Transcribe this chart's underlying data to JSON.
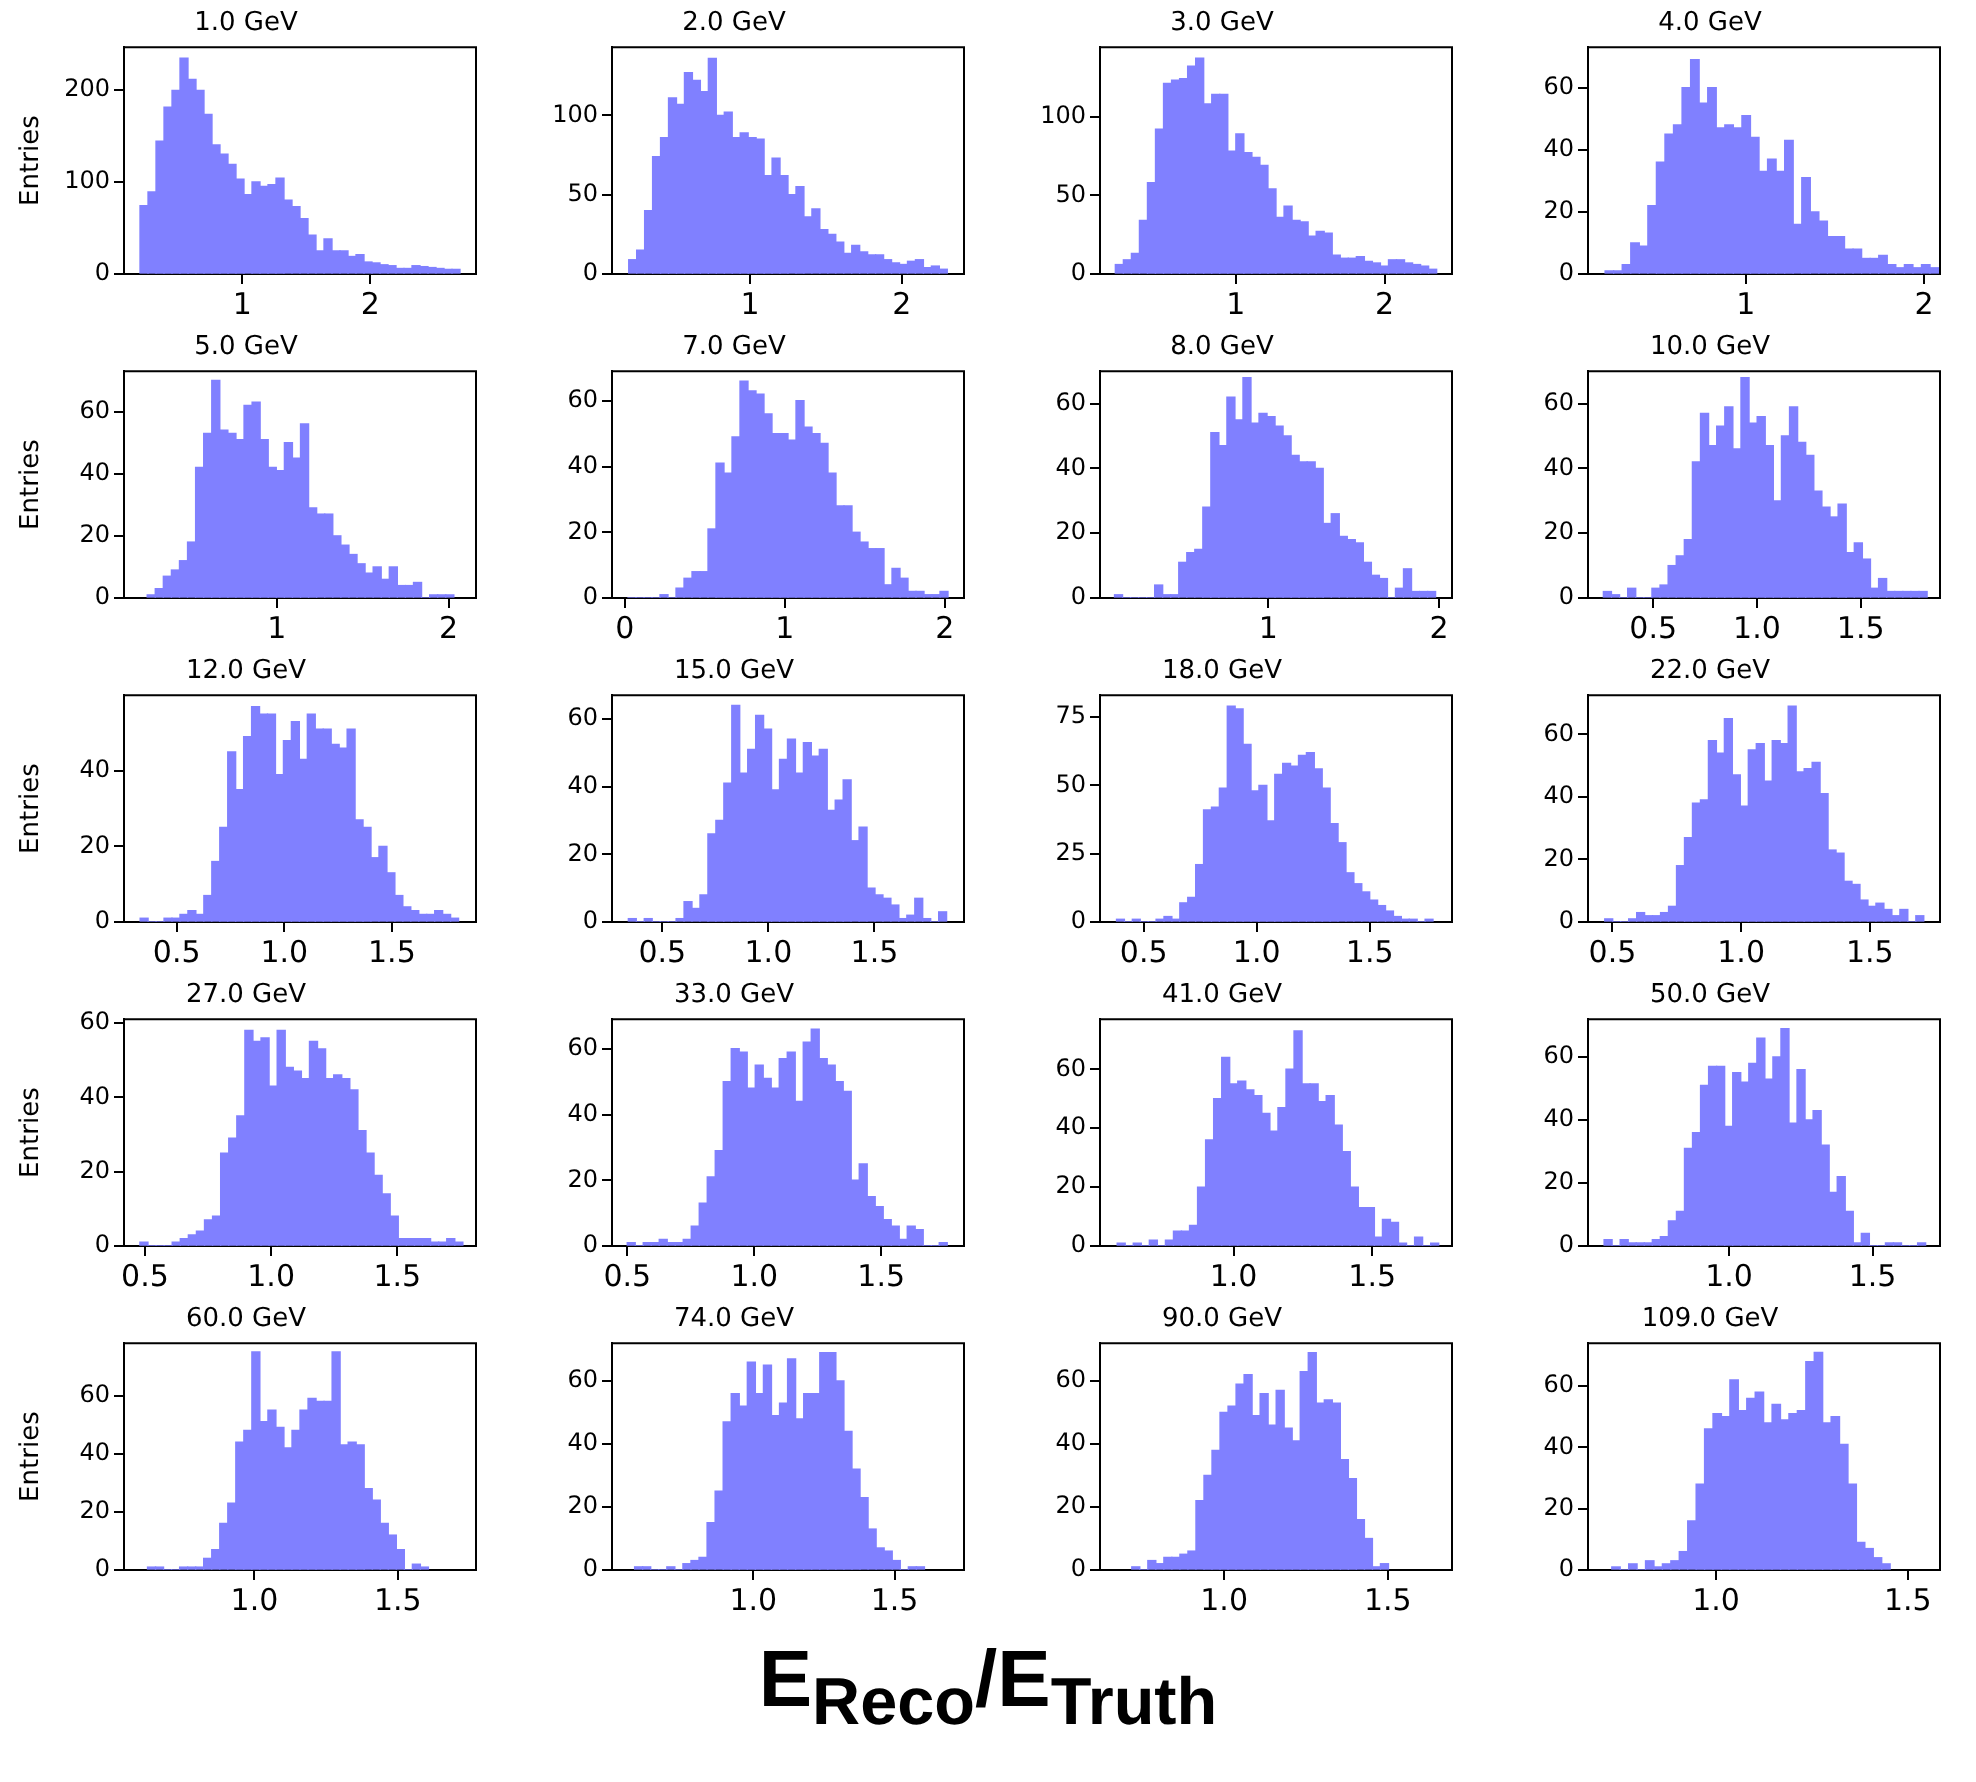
{
  "chart_data": [
    {
      "type": "histogram",
      "title": "1.0 GeV",
      "ylabel": "Entries",
      "color": "#8080ff",
      "xlim": [
        0.075,
        2.825
      ],
      "ylim": [
        0,
        246
      ],
      "xticks": [
        1,
        2
      ],
      "yticks": [
        0,
        100,
        200
      ],
      "bins": [
        0.2,
        0.2625,
        0.325,
        0.3875,
        0.45,
        0.5125,
        0.575,
        0.6375,
        0.7,
        0.7625,
        0.825,
        0.8875,
        0.95,
        1.0125,
        1.075,
        1.1375,
        1.2,
        1.2625,
        1.325,
        1.3875,
        1.45,
        1.5125,
        1.575,
        1.6375,
        1.7,
        1.7625,
        1.825,
        1.8875,
        1.95,
        2.0125,
        2.075,
        2.1375,
        2.2,
        2.2625,
        2.325,
        2.3875,
        2.45,
        2.5125,
        2.575,
        2.6375,
        2.7
      ],
      "values": [
        74,
        89,
        144,
        181,
        199,
        234,
        211,
        199,
        173,
        140,
        130,
        119,
        103,
        86,
        100,
        95,
        97,
        104,
        80,
        73,
        60,
        42,
        25,
        38,
        25,
        25,
        19,
        21,
        13,
        12,
        10,
        9,
        6,
        6,
        9,
        8,
        7,
        6,
        5,
        5
      ]
    },
    {
      "type": "histogram",
      "title": "2.0 GeV",
      "color": "#8080ff",
      "xlim": [
        0.09,
        2.41
      ],
      "ylim": [
        0,
        143
      ],
      "xticks": [
        1,
        2
      ],
      "yticks": [
        0,
        50,
        100
      ],
      "bins": [
        0.2,
        0.2525,
        0.305,
        0.3575,
        0.41,
        0.4625,
        0.515,
        0.5675,
        0.62,
        0.6725,
        0.725,
        0.7775,
        0.83,
        0.8825,
        0.935,
        0.9875,
        1.04,
        1.0925,
        1.145,
        1.1975,
        1.25,
        1.3025,
        1.355,
        1.4075,
        1.46,
        1.5125,
        1.565,
        1.6175,
        1.67,
        1.7225,
        1.775,
        1.8275,
        1.88,
        1.9325,
        1.985,
        2.0375,
        2.09,
        2.1425,
        2.195,
        2.2475,
        2.3
      ],
      "values": [
        9,
        15,
        40,
        74,
        86,
        111,
        107,
        127,
        122,
        115,
        136,
        100,
        102,
        86,
        89,
        86,
        85,
        62,
        73,
        62,
        50,
        55,
        36,
        41,
        28,
        25,
        20,
        13,
        18,
        14,
        12,
        12,
        9,
        7,
        6,
        8,
        9,
        4,
        5,
        3
      ]
    },
    {
      "type": "histogram",
      "title": "3.0 GeV",
      "color": "#8080ff",
      "xlim": [
        0.087,
        2.453
      ],
      "ylim": [
        0,
        144
      ],
      "xticks": [
        1,
        2
      ],
      "yticks": [
        0,
        50,
        100
      ],
      "bins": [
        0.19,
        0.244,
        0.298,
        0.352,
        0.406,
        0.46,
        0.514,
        0.568,
        0.622,
        0.676,
        0.73,
        0.784,
        0.838,
        0.892,
        0.946,
        1.0,
        1.054,
        1.108,
        1.162,
        1.216,
        1.27,
        1.324,
        1.378,
        1.432,
        1.486,
        1.54,
        1.594,
        1.648,
        1.702,
        1.756,
        1.81,
        1.864,
        1.918,
        1.972,
        2.026,
        2.08,
        2.134,
        2.188,
        2.242,
        2.296,
        2.35
      ],
      "values": [
        6,
        9,
        13,
        34,
        58,
        92,
        121,
        123,
        124,
        132,
        137,
        108,
        114,
        114,
        78,
        89,
        77,
        74,
        69,
        54,
        36,
        43,
        34,
        33,
        24,
        27,
        26,
        12,
        10,
        10,
        11,
        8,
        7,
        5,
        9,
        9,
        7,
        6,
        5,
        3
      ]
    },
    {
      "type": "histogram",
      "title": "4.0 GeV",
      "color": "#8080ff",
      "xlim": [
        0.114,
        2.09
      ],
      "ylim": [
        0,
        73
      ],
      "xticks": [
        1,
        2
      ],
      "yticks": [
        0,
        20,
        40,
        60
      ],
      "bins": [
        0.21,
        0.258,
        0.306,
        0.354,
        0.402,
        0.45,
        0.498,
        0.546,
        0.594,
        0.642,
        0.69,
        0.738,
        0.786,
        0.834,
        0.882,
        0.93,
        0.978,
        1.026,
        1.074,
        1.122,
        1.17,
        1.218,
        1.266,
        1.314,
        1.362,
        1.41,
        1.458,
        1.506,
        1.554,
        1.602,
        1.65,
        1.698,
        1.746,
        1.794,
        1.842,
        1.89,
        1.938,
        1.986,
        2.034,
        2.082
      ],
      "values": [
        1,
        1,
        3,
        10,
        9,
        22,
        36,
        45,
        48,
        60,
        69,
        55,
        60,
        47,
        48,
        47,
        51,
        44,
        33,
        37,
        33,
        43,
        16,
        31,
        20,
        17,
        12,
        12,
        8,
        8,
        5,
        5,
        6,
        3,
        2,
        3,
        2,
        3,
        2
      ]
    },
    {
      "type": "histogram",
      "title": "5.0 GeV",
      "ylabel": "Entries",
      "color": "#8080ff",
      "xlim": [
        0.11,
        2.16
      ],
      "ylim": [
        0,
        73
      ],
      "xticks": [
        1,
        2
      ],
      "yticks": [
        0,
        20,
        40,
        60
      ],
      "bins": [
        0.245,
        0.292,
        0.339,
        0.386,
        0.433,
        0.48,
        0.527,
        0.574,
        0.621,
        0.668,
        0.715,
        0.762,
        0.809,
        0.856,
        0.903,
        0.95,
        0.997,
        1.044,
        1.091,
        1.138,
        1.185,
        1.232,
        1.279,
        1.326,
        1.373,
        1.42,
        1.467,
        1.514,
        1.561,
        1.608,
        1.655,
        1.702,
        1.749,
        1.796,
        1.843,
        1.89,
        1.937,
        1.984,
        2.031
      ],
      "values": [
        1,
        3,
        7,
        9,
        12,
        18,
        42,
        53,
        70,
        54,
        53,
        51,
        62,
        63,
        51,
        42,
        41,
        50,
        45,
        56,
        29,
        27,
        27,
        20,
        17,
        14,
        11,
        8,
        10,
        6,
        10,
        4,
        4,
        5,
        0,
        1,
        1,
        1
      ]
    },
    {
      "type": "histogram",
      "title": "7.0 GeV",
      "color": "#8080ff",
      "xlim": [
        -0.08,
        2.12
      ],
      "ylim": [
        0,
        69
      ],
      "xticks": [
        0,
        1,
        2
      ],
      "yticks": [
        0,
        20,
        40,
        60
      ],
      "bins": [
        0.02,
        0.07,
        0.12,
        0.17,
        0.22,
        0.27,
        0.32,
        0.37,
        0.42,
        0.47,
        0.52,
        0.57,
        0.62,
        0.67,
        0.72,
        0.77,
        0.82,
        0.87,
        0.92,
        0.97,
        1.02,
        1.07,
        1.12,
        1.17,
        1.22,
        1.27,
        1.32,
        1.37,
        1.42,
        1.47,
        1.52,
        1.57,
        1.62,
        1.67,
        1.72,
        1.77,
        1.82,
        1.87,
        1.92,
        1.97,
        2.02
      ],
      "values": [
        0,
        0,
        0,
        0,
        1,
        0,
        3,
        6,
        8,
        8,
        21,
        41,
        38,
        49,
        66,
        63,
        62,
        56,
        50,
        50,
        48,
        60,
        52,
        50,
        47,
        38,
        28,
        28,
        20,
        17,
        15,
        15,
        4,
        9,
        6,
        2,
        2,
        1,
        1,
        2
      ]
    },
    {
      "type": "histogram",
      "title": "8.0 GeV",
      "color": "#8080ff",
      "xlim": [
        0.015,
        2.076
      ],
      "ylim": [
        0,
        70
      ],
      "xticks": [
        1,
        2
      ],
      "yticks": [
        0,
        20,
        40,
        60
      ],
      "bins": [
        0.1,
        0.147,
        0.194,
        0.241,
        0.288,
        0.335,
        0.382,
        0.429,
        0.476,
        0.523,
        0.57,
        0.617,
        0.664,
        0.711,
        0.758,
        0.805,
        0.852,
        0.899,
        0.946,
        0.993,
        1.04,
        1.087,
        1.134,
        1.181,
        1.228,
        1.275,
        1.322,
        1.369,
        1.416,
        1.463,
        1.51,
        1.557,
        1.604,
        1.651,
        1.698,
        1.745,
        1.792,
        1.839,
        1.886,
        1.933,
        1.98
      ],
      "values": [
        1,
        0,
        0,
        0,
        0,
        4,
        1,
        1,
        11,
        14,
        15,
        28,
        51,
        47,
        62,
        55,
        68,
        54,
        57,
        56,
        53,
        50,
        44,
        42,
        42,
        40,
        23,
        26,
        19,
        18,
        17,
        11,
        7,
        6,
        0,
        3,
        9,
        2,
        2,
        2
      ]
    },
    {
      "type": "histogram",
      "title": "10.0 GeV",
      "color": "#8080ff",
      "xlim": [
        0.186,
        1.882
      ],
      "ylim": [
        0,
        70
      ],
      "xticks": [
        {
          "value": 0.5,
          "label": "0.5"
        },
        {
          "value": 1,
          "label": "1.0"
        },
        {
          "value": 1.5,
          "label": "1.5"
        }
      ],
      "yticks": [
        0,
        20,
        40,
        60
      ],
      "bins": [
        0.26,
        0.299,
        0.338,
        0.377,
        0.416,
        0.455,
        0.494,
        0.533,
        0.572,
        0.611,
        0.65,
        0.689,
        0.728,
        0.767,
        0.806,
        0.845,
        0.884,
        0.923,
        0.962,
        1.001,
        1.04,
        1.079,
        1.118,
        1.157,
        1.196,
        1.235,
        1.274,
        1.313,
        1.352,
        1.391,
        1.43,
        1.469,
        1.508,
        1.547,
        1.586,
        1.625,
        1.664,
        1.703,
        1.742,
        1.781,
        1.82
      ],
      "values": [
        2,
        1,
        0,
        3,
        0,
        0,
        3,
        4,
        10,
        13,
        18,
        42,
        57,
        47,
        53,
        59,
        46,
        68,
        54,
        56,
        47,
        30,
        50,
        59,
        48,
        44,
        33,
        28,
        25,
        29,
        14,
        17,
        12,
        3,
        6,
        2,
        2,
        2,
        2,
        2
      ]
    },
    {
      "type": "histogram",
      "title": "12.0 GeV",
      "ylabel": "Entries",
      "color": "#8080ff",
      "xlim": [
        0.255,
        1.891
      ],
      "ylim": [
        0,
        60
      ],
      "xticks": [
        {
          "value": 0.5,
          "label": "0.5"
        },
        {
          "value": 1,
          "label": "1.0"
        },
        {
          "value": 1.5,
          "label": "1.5"
        }
      ],
      "yticks": [
        0,
        20,
        40
      ],
      "bins": [
        0.33,
        0.367,
        0.404,
        0.441,
        0.478,
        0.515,
        0.552,
        0.589,
        0.626,
        0.663,
        0.7,
        0.737,
        0.774,
        0.811,
        0.848,
        0.885,
        0.922,
        0.959,
        0.996,
        1.033,
        1.07,
        1.107,
        1.144,
        1.181,
        1.218,
        1.255,
        1.292,
        1.329,
        1.366,
        1.403,
        1.44,
        1.477,
        1.514,
        1.551,
        1.588,
        1.625,
        1.662,
        1.699,
        1.736,
        1.773,
        1.81
      ],
      "values": [
        1,
        0,
        0,
        1,
        1,
        2,
        3,
        2,
        7,
        16,
        25,
        45,
        35,
        49,
        57,
        55,
        55,
        39,
        48,
        53,
        43,
        55,
        51,
        51,
        47,
        46,
        51,
        27,
        25,
        17,
        20,
        13,
        7,
        4,
        3,
        2,
        2,
        3,
        2,
        1
      ]
    },
    {
      "type": "histogram",
      "title": "15.0 GeV",
      "color": "#8080ff",
      "xlim": [
        0.263,
        1.922
      ],
      "ylim": [
        0,
        67
      ],
      "xticks": [
        {
          "value": 0.5,
          "label": "0.5"
        },
        {
          "value": 1,
          "label": "1.0"
        },
        {
          "value": 1.5,
          "label": "1.5"
        }
      ],
      "yticks": [
        0,
        20,
        40,
        60
      ],
      "bins": [
        0.34,
        0.3775,
        0.415,
        0.4525,
        0.49,
        0.5275,
        0.565,
        0.6025,
        0.64,
        0.6775,
        0.715,
        0.7525,
        0.79,
        0.8275,
        0.865,
        0.9025,
        0.94,
        0.9775,
        1.015,
        1.0525,
        1.09,
        1.1275,
        1.165,
        1.2025,
        1.24,
        1.2775,
        1.315,
        1.3525,
        1.39,
        1.4275,
        1.465,
        1.5025,
        1.54,
        1.5775,
        1.615,
        1.6525,
        1.69,
        1.7275,
        1.765,
        1.8025,
        1.84
      ],
      "values": [
        1,
        0,
        1,
        0,
        0,
        0,
        1,
        6,
        4,
        8,
        26,
        30,
        41,
        64,
        44,
        51,
        61,
        57,
        39,
        48,
        54,
        44,
        53,
        49,
        51,
        33,
        36,
        42,
        24,
        28,
        10,
        8,
        7,
        5,
        1,
        2,
        7,
        1,
        0,
        3
      ]
    },
    {
      "type": "histogram",
      "title": "18.0 GeV",
      "color": "#8080ff",
      "xlim": [
        0.307,
        1.864
      ],
      "ylim": [
        0,
        83
      ],
      "xticks": [
        {
          "value": 0.5,
          "label": "0.5"
        },
        {
          "value": 1,
          "label": "1.0"
        },
        {
          "value": 1.5,
          "label": "1.5"
        }
      ],
      "yticks": [
        0,
        25,
        50,
        75
      ],
      "bins": [
        0.38,
        0.415,
        0.45,
        0.485,
        0.52,
        0.555,
        0.59,
        0.625,
        0.66,
        0.695,
        0.73,
        0.765,
        0.8,
        0.835,
        0.87,
        0.905,
        0.94,
        0.975,
        1.01,
        1.045,
        1.08,
        1.115,
        1.15,
        1.185,
        1.22,
        1.255,
        1.29,
        1.325,
        1.36,
        1.395,
        1.43,
        1.465,
        1.5,
        1.535,
        1.57,
        1.605,
        1.64,
        1.675,
        1.71,
        1.745,
        1.78
      ],
      "values": [
        1,
        0,
        1,
        0,
        0,
        1,
        2,
        1,
        7,
        9,
        21,
        41,
        42,
        49,
        79,
        78,
        65,
        48,
        50,
        37,
        54,
        58,
        57,
        61,
        62,
        56,
        49,
        36,
        29,
        18,
        14,
        11,
        8,
        6,
        4,
        2,
        1,
        1,
        0,
        1
      ]
    },
    {
      "type": "histogram",
      "title": "22.0 GeV",
      "color": "#8080ff",
      "xlim": [
        0.405,
        1.773
      ],
      "ylim": [
        0,
        72.5
      ],
      "xticks": [
        {
          "value": 0.5,
          "label": "0.5"
        },
        {
          "value": 1,
          "label": "1.0"
        },
        {
          "value": 1.5,
          "label": "1.5"
        }
      ],
      "yticks": [
        0,
        20,
        40,
        60
      ],
      "bins": [
        0.47,
        0.501,
        0.532,
        0.563,
        0.594,
        0.625,
        0.656,
        0.687,
        0.718,
        0.749,
        0.78,
        0.811,
        0.842,
        0.873,
        0.904,
        0.935,
        0.966,
        0.997,
        1.028,
        1.059,
        1.09,
        1.121,
        1.152,
        1.183,
        1.214,
        1.245,
        1.276,
        1.307,
        1.338,
        1.369,
        1.4,
        1.431,
        1.462,
        1.493,
        1.524,
        1.555,
        1.586,
        1.617,
        1.648,
        1.679,
        1.71
      ],
      "values": [
        1,
        0,
        0,
        1,
        3,
        2,
        2,
        3,
        5,
        18,
        27,
        38,
        39,
        58,
        54,
        65,
        47,
        37,
        55,
        57,
        45,
        58,
        57,
        69,
        48,
        49,
        51,
        41,
        23,
        22,
        13,
        12,
        7,
        5,
        6,
        4,
        2,
        4,
        0,
        2
      ]
    },
    {
      "type": "histogram",
      "title": "27.0 GeV",
      "ylabel": "Entries",
      "color": "#8080ff",
      "xlim": [
        0.417,
        1.812
      ],
      "ylim": [
        0,
        61
      ],
      "xticks": [
        {
          "value": 0.5,
          "label": "0.5"
        },
        {
          "value": 1,
          "label": "1.0"
        },
        {
          "value": 1.5,
          "label": "1.5"
        }
      ],
      "yticks": [
        0,
        20,
        40,
        60
      ],
      "bins": [
        0.48,
        0.512,
        0.544,
        0.576,
        0.608,
        0.64,
        0.672,
        0.704,
        0.736,
        0.768,
        0.8,
        0.832,
        0.864,
        0.896,
        0.928,
        0.96,
        0.992,
        1.024,
        1.056,
        1.088,
        1.12,
        1.152,
        1.184,
        1.216,
        1.248,
        1.28,
        1.312,
        1.344,
        1.376,
        1.408,
        1.44,
        1.472,
        1.504,
        1.536,
        1.568,
        1.6,
        1.632,
        1.664,
        1.696,
        1.728,
        1.76
      ],
      "values": [
        1,
        0,
        0,
        0,
        1,
        2,
        3,
        4,
        7,
        8,
        25,
        29,
        35,
        58,
        55,
        56,
        43,
        58,
        48,
        47,
        45,
        55,
        53,
        45,
        46,
        45,
        42,
        31,
        25,
        19,
        14,
        8,
        2,
        2,
        2,
        2,
        1,
        1,
        2,
        1
      ]
    },
    {
      "type": "histogram",
      "title": "33.0 GeV",
      "color": "#8080ff",
      "xlim": [
        0.44,
        1.826
      ],
      "ylim": [
        0,
        69
      ],
      "xticks": [
        {
          "value": 0.5,
          "label": "0.5"
        },
        {
          "value": 1,
          "label": "1.0"
        },
        {
          "value": 1.5,
          "label": "1.5"
        }
      ],
      "yticks": [
        0,
        20,
        40,
        60
      ],
      "bins": [
        0.5,
        0.5315,
        0.563,
        0.5945,
        0.626,
        0.6575,
        0.689,
        0.7205,
        0.752,
        0.7835,
        0.815,
        0.8465,
        0.878,
        0.9095,
        0.941,
        0.9725,
        1.004,
        1.0355,
        1.067,
        1.0985,
        1.13,
        1.1615,
        1.193,
        1.2245,
        1.256,
        1.2875,
        1.319,
        1.3505,
        1.382,
        1.4135,
        1.445,
        1.4765,
        1.508,
        1.5395,
        1.571,
        1.6025,
        1.634,
        1.6655,
        1.697,
        1.7285,
        1.76
      ],
      "values": [
        1,
        0,
        1,
        1,
        2,
        1,
        1,
        2,
        6,
        13,
        21,
        29,
        50,
        60,
        59,
        48,
        55,
        51,
        48,
        57,
        59,
        44,
        62,
        66,
        57,
        55,
        50,
        47,
        20,
        25,
        15,
        12,
        8,
        6,
        2,
        6,
        5,
        0,
        0,
        1
      ]
    },
    {
      "type": "histogram",
      "title": "41.0 GeV",
      "color": "#8080ff",
      "xlim": [
        0.518,
        1.788
      ],
      "ylim": [
        0,
        77
      ],
      "xticks": [
        {
          "value": 1,
          "label": "1.0"
        },
        {
          "value": 1.5,
          "label": "1.5"
        }
      ],
      "yticks": [
        0,
        20,
        40,
        60
      ],
      "bins": [
        0.58,
        0.609,
        0.638,
        0.667,
        0.696,
        0.725,
        0.754,
        0.783,
        0.812,
        0.841,
        0.87,
        0.899,
        0.928,
        0.957,
        0.986,
        1.015,
        1.044,
        1.073,
        1.102,
        1.131,
        1.16,
        1.189,
        1.218,
        1.247,
        1.276,
        1.305,
        1.334,
        1.363,
        1.392,
        1.421,
        1.45,
        1.479,
        1.508,
        1.537,
        1.566,
        1.595,
        1.624,
        1.653,
        1.682,
        1.711,
        1.74
      ],
      "values": [
        1,
        0,
        1,
        0,
        2,
        0,
        2,
        5,
        5,
        7,
        20,
        36,
        50,
        64,
        55,
        56,
        53,
        51,
        45,
        39,
        47,
        60,
        73,
        55,
        55,
        49,
        51,
        41,
        32,
        20,
        13,
        13,
        3,
        9,
        8,
        1,
        0,
        3,
        0,
        1
      ]
    },
    {
      "type": "histogram",
      "title": "50.0 GeV",
      "color": "#8080ff",
      "xlim": [
        0.509,
        1.735
      ],
      "ylim": [
        0,
        72
      ],
      "xticks": [
        {
          "value": 1,
          "label": "1.0"
        },
        {
          "value": 1.5,
          "label": "1.5"
        }
      ],
      "yticks": [
        0,
        20,
        40,
        60
      ],
      "bins": [
        0.565,
        0.593,
        0.621,
        0.649,
        0.677,
        0.705,
        0.733,
        0.761,
        0.789,
        0.817,
        0.845,
        0.873,
        0.901,
        0.929,
        0.957,
        0.985,
        1.013,
        1.041,
        1.069,
        1.097,
        1.125,
        1.153,
        1.181,
        1.209,
        1.237,
        1.265,
        1.293,
        1.321,
        1.349,
        1.377,
        1.405,
        1.433,
        1.461,
        1.489,
        1.517,
        1.545,
        1.573,
        1.601,
        1.629,
        1.657,
        1.685
      ],
      "values": [
        2,
        0,
        2,
        1,
        1,
        1,
        2,
        3,
        8,
        11,
        31,
        36,
        51,
        57,
        57,
        38,
        55,
        52,
        58,
        66,
        53,
        60,
        69,
        39,
        56,
        40,
        43,
        32,
        17,
        22,
        11,
        1,
        4,
        0,
        0,
        1,
        1,
        0,
        0,
        1
      ]
    },
    {
      "type": "histogram",
      "title": "60.0 GeV",
      "ylabel": "Entries",
      "color": "#8080ff",
      "xlim": [
        0.545,
        1.773
      ],
      "ylim": [
        0,
        78
      ],
      "xticks": [
        {
          "value": 1,
          "label": "1.0"
        },
        {
          "value": 1.5,
          "label": "1.5"
        }
      ],
      "yticks": [
        0,
        20,
        40,
        60
      ],
      "bins": [
        0.627,
        0.655,
        0.683,
        0.711,
        0.739,
        0.767,
        0.795,
        0.823,
        0.851,
        0.879,
        0.907,
        0.935,
        0.963,
        0.991,
        1.019,
        1.047,
        1.075,
        1.103,
        1.131,
        1.159,
        1.187,
        1.215,
        1.243,
        1.271,
        1.299,
        1.327,
        1.355,
        1.383,
        1.411,
        1.439,
        1.467,
        1.495,
        1.523,
        1.551,
        1.579,
        1.607
      ],
      "values": [
        1,
        1,
        0,
        0,
        1,
        1,
        1,
        4,
        7,
        16,
        23,
        44,
        48,
        75,
        51,
        55,
        49,
        42,
        48,
        55,
        59,
        58,
        58,
        75,
        43,
        44,
        43,
        28,
        24,
        16,
        12,
        7,
        0,
        2,
        1
      ]
    },
    {
      "type": "histogram",
      "title": "74.0 GeV",
      "color": "#8080ff",
      "xlim": [
        0.5,
        1.746
      ],
      "ylim": [
        0,
        72
      ],
      "xticks": [
        {
          "value": 1,
          "label": "1.0"
        },
        {
          "value": 1.5,
          "label": "1.5"
        }
      ],
      "yticks": [
        0,
        20,
        40,
        60
      ],
      "bins": [
        0.58,
        0.6085,
        0.637,
        0.6655,
        0.694,
        0.7225,
        0.751,
        0.7795,
        0.808,
        0.8365,
        0.865,
        0.8935,
        0.922,
        0.9505,
        0.979,
        1.0075,
        1.036,
        1.0645,
        1.093,
        1.1215,
        1.15,
        1.1785,
        1.207,
        1.2355,
        1.264,
        1.2925,
        1.321,
        1.3495,
        1.378,
        1.4065,
        1.435,
        1.4635,
        1.492,
        1.5205,
        1.549,
        1.5775,
        1.606
      ],
      "values": [
        1,
        1,
        0,
        0,
        1,
        0,
        2,
        3,
        4,
        15,
        25,
        47,
        56,
        52,
        66,
        56,
        65,
        49,
        53,
        67,
        48,
        56,
        56,
        69,
        69,
        60,
        44,
        32,
        23,
        13,
        7,
        6,
        3,
        0,
        1,
        1
      ]
    },
    {
      "type": "histogram",
      "title": "90.0 GeV",
      "color": "#8080ff",
      "xlim": [
        0.621,
        1.696
      ],
      "ylim": [
        0,
        72
      ],
      "xticks": [
        {
          "value": 1,
          "label": "1.0"
        },
        {
          "value": 1.5,
          "label": "1.5"
        }
      ],
      "yticks": [
        0,
        20,
        40,
        60
      ],
      "bins": [
        0.718,
        0.7425,
        0.767,
        0.7915,
        0.816,
        0.8405,
        0.865,
        0.8895,
        0.914,
        0.9385,
        0.963,
        0.9875,
        1.012,
        1.0365,
        1.061,
        1.0855,
        1.11,
        1.1345,
        1.159,
        1.1835,
        1.208,
        1.2325,
        1.257,
        1.2815,
        1.306,
        1.3305,
        1.355,
        1.3795,
        1.404,
        1.4285,
        1.453,
        1.4775,
        1.502
      ],
      "values": [
        1,
        0,
        3,
        2,
        4,
        4,
        5,
        6,
        22,
        30,
        38,
        50,
        52,
        59,
        62,
        49,
        56,
        46,
        57,
        45,
        41,
        63,
        69,
        53,
        54,
        53,
        35,
        29,
        16,
        10,
        1,
        2
      ]
    },
    {
      "type": "histogram",
      "title": "109.0 GeV",
      "color": "#8080ff",
      "xlim": [
        0.666,
        1.584
      ],
      "ylim": [
        0,
        74
      ],
      "xticks": [
        {
          "value": 1,
          "label": "1.0"
        },
        {
          "value": 1.5,
          "label": "1.5"
        }
      ],
      "yticks": [
        0,
        20,
        40,
        60
      ],
      "bins": [
        0.728,
        0.75,
        0.772,
        0.794,
        0.816,
        0.838,
        0.86,
        0.882,
        0.904,
        0.926,
        0.948,
        0.97,
        0.992,
        1.014,
        1.036,
        1.058,
        1.08,
        1.102,
        1.124,
        1.146,
        1.168,
        1.19,
        1.212,
        1.234,
        1.256,
        1.278,
        1.3,
        1.322,
        1.344,
        1.366,
        1.388,
        1.41,
        1.432,
        1.454
      ],
      "values": [
        1,
        0,
        2,
        0,
        3,
        1,
        2,
        3,
        6,
        16,
        28,
        46,
        51,
        50,
        62,
        52,
        56,
        58,
        48,
        54,
        49,
        51,
        52,
        68,
        71,
        48,
        50,
        41,
        28,
        9,
        7,
        4,
        2
      ]
    },
    {
      "type": "other",
      "xlabel": "E$_{Reco}$/E$_{Truth}$"
    }
  ]
}
